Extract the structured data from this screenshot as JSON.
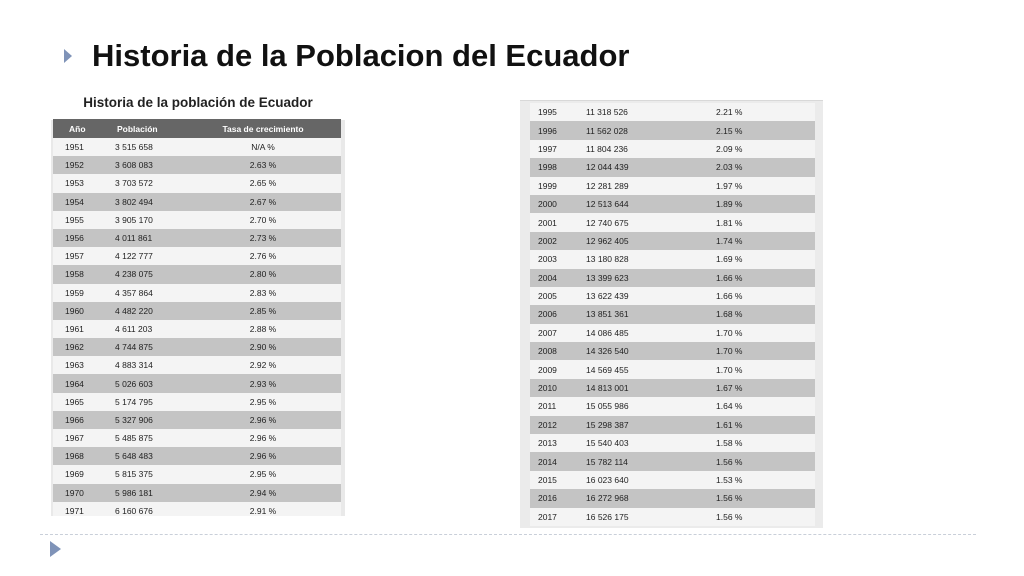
{
  "slide": {
    "title": "Historia de la Poblacion del Ecuador"
  },
  "left_table": {
    "caption": "Historia de la población de Ecuador",
    "headers": [
      "Año",
      "Población",
      "Tasa de crecimiento"
    ],
    "rows": [
      [
        "1951",
        "3 515 658",
        "N/A %"
      ],
      [
        "1952",
        "3 608 083",
        "2.63 %"
      ],
      [
        "1953",
        "3 703 572",
        "2.65 %"
      ],
      [
        "1954",
        "3 802 494",
        "2.67 %"
      ],
      [
        "1955",
        "3 905 170",
        "2.70 %"
      ],
      [
        "1956",
        "4 011 861",
        "2.73 %"
      ],
      [
        "1957",
        "4 122 777",
        "2.76 %"
      ],
      [
        "1958",
        "4 238 075",
        "2.80 %"
      ],
      [
        "1959",
        "4 357 864",
        "2.83 %"
      ],
      [
        "1960",
        "4 482 220",
        "2.85 %"
      ],
      [
        "1961",
        "4 611 203",
        "2.88 %"
      ],
      [
        "1962",
        "4 744 875",
        "2.90 %"
      ],
      [
        "1963",
        "4 883 314",
        "2.92 %"
      ],
      [
        "1964",
        "5 026 603",
        "2.93 %"
      ],
      [
        "1965",
        "5 174 795",
        "2.95 %"
      ],
      [
        "1966",
        "5 327 906",
        "2.96 %"
      ],
      [
        "1967",
        "5 485 875",
        "2.96 %"
      ],
      [
        "1968",
        "5 648 483",
        "2.96 %"
      ],
      [
        "1969",
        "5 815 375",
        "2.95 %"
      ],
      [
        "1970",
        "5 986 181",
        "2.94 %"
      ],
      [
        "1971",
        "6 160 676",
        "2.91 %"
      ]
    ]
  },
  "right_table": {
    "rows": [
      [
        "1995",
        "11 318 526",
        "2.21 %"
      ],
      [
        "1996",
        "11 562 028",
        "2.15 %"
      ],
      [
        "1997",
        "11 804 236",
        "2.09 %"
      ],
      [
        "1998",
        "12 044 439",
        "2.03 %"
      ],
      [
        "1999",
        "12 281 289",
        "1.97 %"
      ],
      [
        "2000",
        "12 513 644",
        "1.89 %"
      ],
      [
        "2001",
        "12 740 675",
        "1.81 %"
      ],
      [
        "2002",
        "12 962 405",
        "1.74 %"
      ],
      [
        "2003",
        "13 180 828",
        "1.69 %"
      ],
      [
        "2004",
        "13 399 623",
        "1.66 %"
      ],
      [
        "2005",
        "13 622 439",
        "1.66 %"
      ],
      [
        "2006",
        "13 851 361",
        "1.68 %"
      ],
      [
        "2007",
        "14 086 485",
        "1.70 %"
      ],
      [
        "2008",
        "14 326 540",
        "1.70 %"
      ],
      [
        "2009",
        "14 569 455",
        "1.70 %"
      ],
      [
        "2010",
        "14 813 001",
        "1.67 %"
      ],
      [
        "2011",
        "15 055 986",
        "1.64 %"
      ],
      [
        "2012",
        "15 298 387",
        "1.61 %"
      ],
      [
        "2013",
        "15 540 403",
        "1.58 %"
      ],
      [
        "2014",
        "15 782 114",
        "1.56 %"
      ],
      [
        "2015",
        "16 023 640",
        "1.53 %"
      ],
      [
        "2016",
        "16 272 968",
        "1.56 %"
      ],
      [
        "2017",
        "16 526 175",
        "1.56 %"
      ]
    ]
  },
  "colors": {
    "accent_arrow": "#7f93b8",
    "header_bg": "#666666",
    "row_light": "#f4f4f4",
    "row_dark": "#c4c4c4"
  }
}
